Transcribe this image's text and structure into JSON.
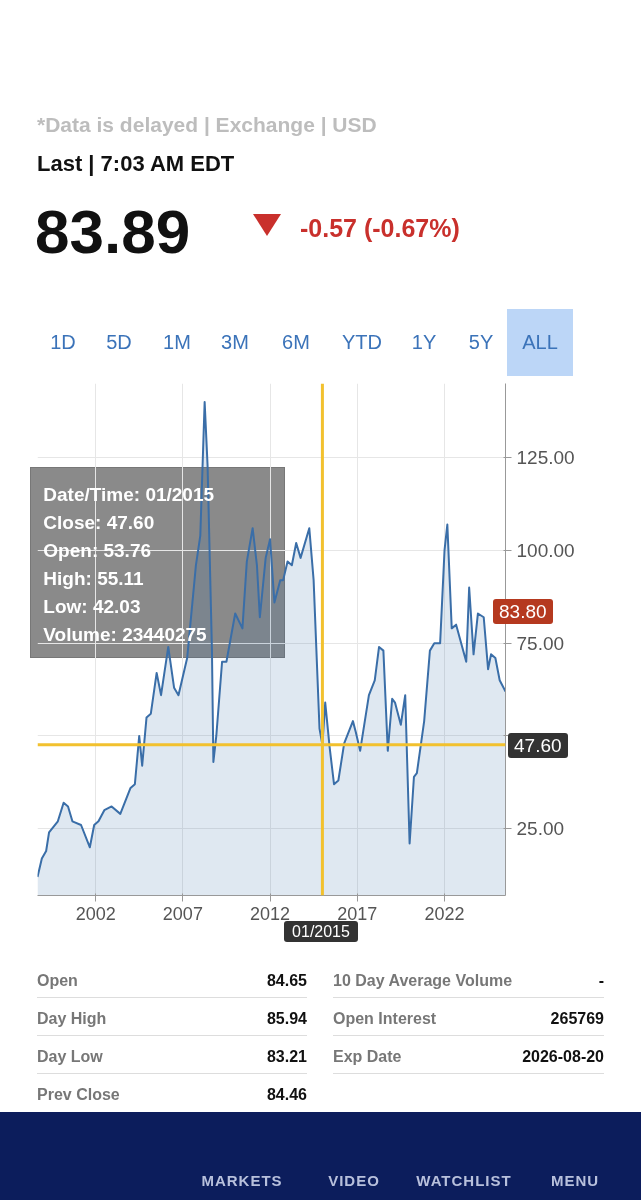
{
  "chart_data": {
    "type": "area",
    "x": [
      "1998-09",
      "1998-12",
      "1999-03",
      "1999-05",
      "1999-11",
      "2000-03",
      "2000-06",
      "2000-09",
      "2001-03",
      "2001-09",
      "2001-12",
      "2002-03",
      "2002-07",
      "2002-12",
      "2003-06",
      "2004-01",
      "2004-04",
      "2004-07",
      "2004-09",
      "2004-12",
      "2005-03",
      "2005-07",
      "2005-10",
      "2006-03",
      "2006-07",
      "2006-10",
      "2007-04",
      "2007-10",
      "2008-01",
      "2008-04",
      "2008-06",
      "2008-09",
      "2008-10",
      "2008-12",
      "2009-04",
      "2009-07",
      "2010-01",
      "2010-06",
      "2010-09",
      "2011-01",
      "2011-04",
      "2011-06",
      "2011-10",
      "2012-01",
      "2012-04",
      "2012-08",
      "2012-10",
      "2013-01",
      "2013-04",
      "2013-07",
      "2013-10",
      "2014-04",
      "2014-07",
      "2014-11",
      "2015-01",
      "2015-03",
      "2015-06",
      "2015-09",
      "2015-12",
      "2016-04",
      "2016-10",
      "2016-12",
      "2017-03",
      "2017-09",
      "2018-01",
      "2018-04",
      "2018-07",
      "2018-10",
      "2019-01",
      "2019-03",
      "2019-07",
      "2019-10",
      "2020-01",
      "2020-04",
      "2020-06",
      "2020-11",
      "2021-03",
      "2021-06",
      "2021-10",
      "2022-01",
      "2022-03",
      "2022-06",
      "2022-09",
      "2023-04",
      "2023-06",
      "2023-09",
      "2023-12",
      "2024-04",
      "2024-07",
      "2024-09",
      "2024-12",
      "2025-03",
      "2025-07"
    ],
    "series": [
      {
        "color": "#3a6ea8",
        "values": [
          12,
          17,
          19,
          24,
          27,
          32,
          31,
          27,
          26,
          20,
          26,
          27,
          30,
          31,
          29,
          36,
          37,
          50,
          42,
          55,
          56,
          67,
          61,
          74,
          63,
          61,
          71,
          96,
          104,
          140,
          123,
          73,
          43,
          50,
          70,
          70,
          83,
          79,
          97,
          106,
          96,
          82,
          98,
          103,
          86,
          92,
          92,
          97,
          96,
          102,
          98,
          106,
          92,
          52,
          47.6,
          59,
          47,
          37,
          38,
          48,
          54,
          51,
          46,
          61,
          65,
          74,
          73,
          46,
          60,
          59,
          53,
          61,
          21,
          39,
          40,
          54,
          73,
          75,
          75,
          100,
          107,
          79,
          80,
          70,
          90,
          72,
          83,
          82,
          68,
          72,
          71,
          65,
          62
        ]
      }
    ],
    "xlim": [
      "1998-09",
      "2025-07"
    ],
    "xticks": [
      "2002",
      "2007",
      "2012",
      "2017",
      "2022"
    ],
    "ylim": [
      7,
      145
    ],
    "yticks": [
      {
        "value": 25,
        "label": "25.00"
      },
      {
        "value": 50,
        "label": null
      },
      {
        "value": 75,
        "label": "75.00"
      },
      {
        "value": 100,
        "label": "100.00"
      },
      {
        "value": 125,
        "label": "125.00"
      }
    ],
    "grid": true,
    "marker": "none",
    "line_style": "solid",
    "ref_lines": [
      {
        "axis": "x",
        "value": "2015-01",
        "label": "01/2015",
        "color": "#f2c12e"
      },
      {
        "axis": "y",
        "value": 47.6,
        "label": "47.60",
        "color": "#f2c12e"
      }
    ],
    "annotations": [
      "*Data is delayed | Exchange | USD",
      "Last | 7:03 AM EDT",
      "83.89",
      "-0.57 (-0.67%)",
      "1D",
      "5D",
      "1M",
      "3M",
      "6M",
      "YTD",
      "1Y",
      "5Y",
      "ALL",
      "Date/Time: 01/2015",
      "Close: 47.60",
      "Open: 53.76",
      "High: 55.11",
      "Low: 42.03",
      "Volume: 23440275",
      "83.80",
      "Open",
      "84.65",
      "Day High",
      "85.94",
      "Day Low",
      "83.21",
      "Prev Close",
      "84.46",
      "10 Day Average Volume",
      "-",
      "Open Interest",
      "265769",
      "Exp Date",
      "2026-08-20",
      "MARKETS",
      "VIDEO",
      "WATCHLIST",
      "MENU"
    ]
  }
}
